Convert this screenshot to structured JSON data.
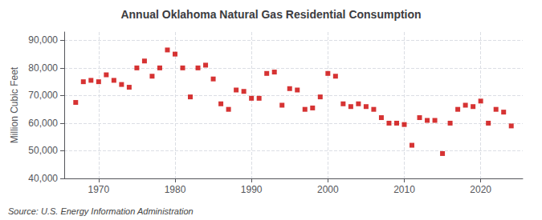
{
  "chart_data": {
    "type": "scatter",
    "title": "Annual Oklahoma Natural Gas Residential Consumption",
    "ylabel": "Million Cubic Feet",
    "source": "Source: U.S. Energy Information Administration",
    "color": "#cc0000",
    "marker": "square",
    "grid": true,
    "xlim": [
      1965.5,
      2025.5
    ],
    "xticks": [
      1970,
      1980,
      1990,
      2000,
      2010,
      2020
    ],
    "ylim": [
      40000,
      93000
    ],
    "yticks": [
      {
        "value": 40000,
        "label": "40,000"
      },
      {
        "value": 50000,
        "label": "50,000"
      },
      {
        "value": 60000,
        "label": "60,000"
      },
      {
        "value": 70000,
        "label": "70,000"
      },
      {
        "value": 80000,
        "label": "80,000"
      },
      {
        "value": 90000,
        "label": "90,000"
      }
    ],
    "x": [
      1967,
      1968,
      1969,
      1970,
      1971,
      1972,
      1973,
      1974,
      1975,
      1976,
      1977,
      1978,
      1979,
      1980,
      1981,
      1982,
      1983,
      1984,
      1985,
      1986,
      1987,
      1988,
      1989,
      1990,
      1991,
      1992,
      1993,
      1994,
      1995,
      1996,
      1997,
      1998,
      1999,
      2000,
      2001,
      2002,
      2003,
      2004,
      2005,
      2006,
      2007,
      2008,
      2009,
      2010,
      2011,
      2012,
      2013,
      2014,
      2015,
      2016,
      2017,
      2018,
      2019,
      2020,
      2021,
      2022,
      2023,
      2024
    ],
    "values": [
      67500,
      75000,
      75500,
      75000,
      77500,
      75500,
      74000,
      73000,
      80000,
      82500,
      77000,
      80000,
      86500,
      85000,
      80000,
      69500,
      80000,
      81000,
      76000,
      67000,
      65000,
      72000,
      71500,
      69000,
      69000,
      78000,
      78500,
      66500,
      72500,
      72000,
      65000,
      65500,
      69500,
      78000,
      77000,
      67000,
      66000,
      67000,
      66000,
      65000,
      62000,
      60000,
      60000,
      59500,
      52000,
      62000,
      61000,
      61000,
      49000,
      60000,
      65000,
      66500,
      66000,
      68000,
      60000,
      65000,
      64000,
      59000
    ]
  }
}
